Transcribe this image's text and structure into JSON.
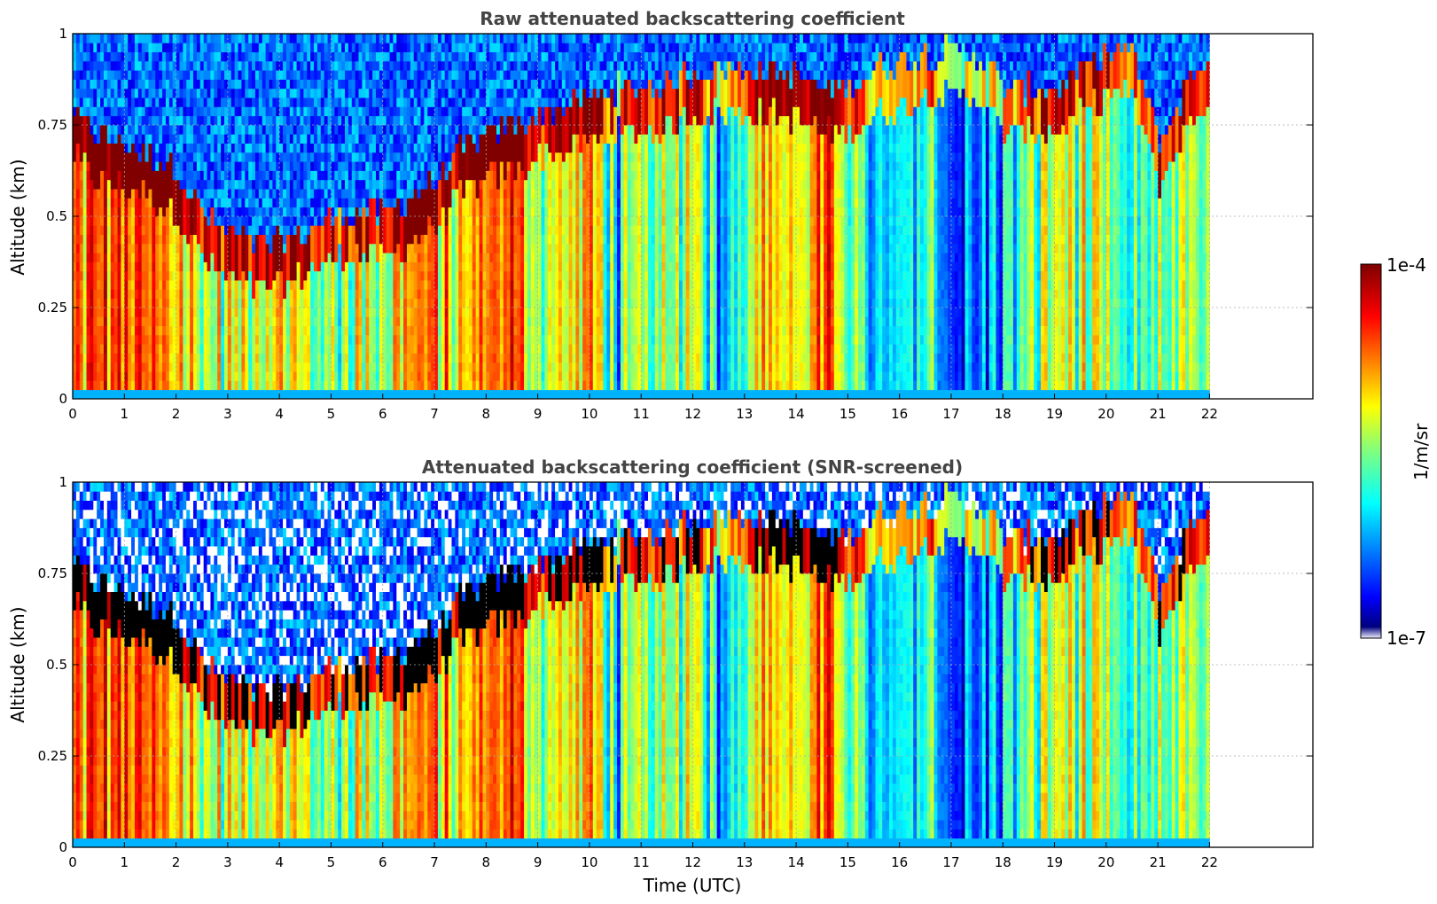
{
  "chart_data": [
    {
      "type": "heatmap",
      "title": "Raw attenuated backscattering coefficient",
      "xlabel": "",
      "ylabel": "Altitude (km)",
      "xlim": [
        0,
        24
      ],
      "ylim": [
        0,
        1
      ],
      "xticks": [
        "0",
        "1",
        "2",
        "3",
        "4",
        "5",
        "6",
        "7",
        "8",
        "9",
        "10",
        "11",
        "12",
        "13",
        "14",
        "15",
        "16",
        "17",
        "18",
        "19",
        "20",
        "21",
        "22"
      ],
      "yticks": [
        "0",
        "0.25",
        "0.5",
        "0.75",
        "1"
      ],
      "data_end_hour": 22,
      "grid": true,
      "colormap": "jet",
      "color_scale": "log",
      "clim_labels": [
        "1e-7",
        "1e-4"
      ],
      "colorbar_label": "1/m/sr",
      "profile_hours": [
        0,
        0.5,
        1,
        1.5,
        2,
        2.5,
        3,
        3.5,
        4,
        4.5,
        5,
        5.5,
        6,
        6.5,
        7,
        7.5,
        8,
        8.5,
        9,
        9.5,
        10,
        10.5,
        11,
        11.5,
        12,
        12.5,
        13,
        13.5,
        14,
        14.5,
        15,
        15.5,
        16,
        16.5,
        17,
        17.5,
        18,
        18.5,
        19,
        19.5,
        20,
        20.5,
        21,
        21.5,
        22
      ],
      "boundary_layer_top_km": [
        0.78,
        0.72,
        0.7,
        0.67,
        0.63,
        0.5,
        0.45,
        0.42,
        0.43,
        0.46,
        0.5,
        0.52,
        0.5,
        0.55,
        0.6,
        0.68,
        0.72,
        0.75,
        0.78,
        0.8,
        0.82,
        0.85,
        0.85,
        0.86,
        0.9,
        0.9,
        0.9,
        0.9,
        0.88,
        0.85,
        0.85,
        0.9,
        0.92,
        0.95,
        0.95,
        0.95,
        0.85,
        0.85,
        0.85,
        0.9,
        0.95,
        0.95,
        0.7,
        0.85,
        0.95
      ],
      "backscatter_level_0to1": [
        0.72,
        0.8,
        0.78,
        0.74,
        0.7,
        0.55,
        0.58,
        0.62,
        0.66,
        0.55,
        0.48,
        0.6,
        0.55,
        0.75,
        0.7,
        0.6,
        0.8,
        0.78,
        0.55,
        0.6,
        0.72,
        0.35,
        0.5,
        0.45,
        0.65,
        0.3,
        0.55,
        0.7,
        0.6,
        0.75,
        0.55,
        0.25,
        0.3,
        0.45,
        0.2,
        0.2,
        0.35,
        0.45,
        0.6,
        0.55,
        0.45,
        0.35,
        0.5,
        0.55,
        0.4
      ]
    },
    {
      "type": "heatmap",
      "title": "Attenuated backscattering coefficient (SNR-screened)",
      "xlabel": "Time (UTC)",
      "ylabel": "Altitude (km)",
      "xlim": [
        0,
        24
      ],
      "ylim": [
        0,
        1
      ],
      "xticks": [
        "0",
        "1",
        "2",
        "3",
        "4",
        "5",
        "6",
        "7",
        "8",
        "9",
        "10",
        "11",
        "12",
        "13",
        "14",
        "15",
        "16",
        "17",
        "18",
        "19",
        "20",
        "21",
        "22"
      ],
      "yticks": [
        "0",
        "0.25",
        "0.5",
        "0.75",
        "1"
      ],
      "data_end_hour": 22,
      "grid": true,
      "colormap": "jet",
      "color_scale": "log",
      "clim_labels": [
        "1e-7",
        "1e-4"
      ],
      "colorbar_label": "1/m/sr",
      "screened_color": "#000000"
    }
  ]
}
